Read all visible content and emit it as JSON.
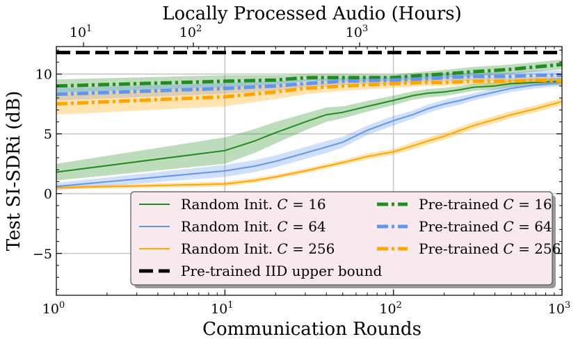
{
  "chart_data": {
    "type": "line",
    "xscale": "log",
    "xlim": [
      1,
      1000
    ],
    "ylim": [
      -8.5,
      12.3
    ],
    "xlabel": "Communication Rounds",
    "ylabel": "Test SI-SDRi (dB)",
    "top_xlabel": "Locally Processed Audio (Hours)",
    "x_ticks": [
      {
        "value": 1,
        "base": "10",
        "exp": "0"
      },
      {
        "value": 10,
        "base": "10",
        "exp": "1"
      },
      {
        "value": 100,
        "base": "10",
        "exp": "2"
      },
      {
        "value": 1000,
        "base": "10",
        "exp": "3"
      }
    ],
    "top_ticks": [
      {
        "value": 1.45,
        "base": "10",
        "exp": "1"
      },
      {
        "value": 6.5,
        "base": "10",
        "exp": "2"
      },
      {
        "value": 63,
        "base": "10",
        "exp": "3"
      }
    ],
    "y_ticks": [
      {
        "value": 10,
        "label": "10"
      },
      {
        "value": 5,
        "label": "5"
      },
      {
        "value": 0,
        "label": "0"
      },
      {
        "value": -5,
        "label": "−5"
      }
    ],
    "upper_bound": {
      "name": "Pre-trained IID upper bound",
      "value": 11.8,
      "color": "#000000"
    },
    "legend": {
      "placement": "lower-right",
      "entries": [
        {
          "series": 0,
          "label": "Random Init. ",
          "c": "C",
          "eq": " = 16"
        },
        {
          "series": 3,
          "label": "Pre-trained ",
          "c": "C",
          "eq": " = 16"
        },
        {
          "series": 1,
          "label": "Random Init. ",
          "c": "C",
          "eq": " = 64"
        },
        {
          "series": 4,
          "label": "Pre-trained ",
          "c": "C",
          "eq": " = 64"
        },
        {
          "series": 2,
          "label": "Random Init. ",
          "c": "C",
          "eq": " = 256"
        },
        {
          "series": 5,
          "label": "Pre-trained ",
          "c": "C",
          "eq": " = 256"
        },
        {
          "series": "upper",
          "label": "Pre-trained IID upper bound",
          "c": "",
          "eq": ""
        }
      ]
    },
    "series": [
      {
        "name": "Random Init. C = 16",
        "style": "solid",
        "color": "#228B22",
        "x": [
          1,
          10,
          15,
          20,
          30,
          40,
          50,
          70,
          100,
          130,
          160,
          200,
          250,
          300,
          400,
          500,
          700,
          1000
        ],
        "values": [
          1.8,
          3.6,
          4.4,
          5.1,
          6.0,
          6.6,
          6.8,
          7.3,
          7.8,
          8.2,
          8.4,
          8.5,
          8.7,
          8.9,
          9.0,
          9.2,
          9.3,
          9.4
        ],
        "band": [
          0.7,
          1.1,
          1.0,
          0.9,
          0.7,
          0.6,
          0.5,
          0.45,
          0.4,
          0.35,
          0.35,
          0.35,
          0.3,
          0.3,
          0.3,
          0.3,
          0.3,
          0.3
        ]
      },
      {
        "name": "Random Init. C = 64",
        "style": "solid",
        "color": "#6495ED",
        "x": [
          1,
          10,
          15,
          20,
          30,
          40,
          50,
          70,
          100,
          130,
          160,
          200,
          250,
          300,
          400,
          500,
          700,
          1000
        ],
        "values": [
          0.6,
          1.9,
          2.3,
          2.7,
          3.4,
          3.9,
          4.3,
          5.3,
          6.1,
          6.6,
          7.1,
          7.5,
          7.8,
          8.1,
          8.5,
          8.8,
          9.1,
          9.3
        ],
        "band": [
          0.3,
          0.5,
          0.5,
          0.5,
          0.5,
          0.5,
          0.45,
          0.4,
          0.4,
          0.35,
          0.35,
          0.35,
          0.35,
          0.3,
          0.3,
          0.3,
          0.3,
          0.3
        ]
      },
      {
        "name": "Random Init. C = 256",
        "style": "solid",
        "color": "#FFA500",
        "x": [
          1,
          10,
          15,
          20,
          30,
          40,
          50,
          70,
          100,
          130,
          160,
          200,
          250,
          300,
          400,
          500,
          700,
          1000
        ],
        "values": [
          0.5,
          0.8,
          1.1,
          1.4,
          1.9,
          2.3,
          2.6,
          3.1,
          3.5,
          4.0,
          4.4,
          4.8,
          5.3,
          5.7,
          6.2,
          6.6,
          7.1,
          7.7
        ],
        "band": [
          0.15,
          0.2,
          0.2,
          0.2,
          0.2,
          0.2,
          0.2,
          0.25,
          0.25,
          0.3,
          0.3,
          0.3,
          0.3,
          0.3,
          0.3,
          0.3,
          0.3,
          0.3
        ]
      },
      {
        "name": "Pre-trained C = 16",
        "style": "dashdot",
        "color": "#228B22",
        "x": [
          1,
          10,
          20,
          30,
          50,
          100,
          150,
          200,
          300,
          400,
          500,
          700,
          1000
        ],
        "values": [
          9.0,
          9.4,
          9.5,
          9.7,
          9.7,
          9.7,
          9.9,
          10.0,
          10.2,
          10.3,
          10.4,
          10.6,
          10.8
        ],
        "band": [
          0.55,
          0.5,
          0.4,
          0.3,
          0.3,
          0.25,
          0.3,
          0.35,
          0.4,
          0.4,
          0.4,
          0.4,
          0.4
        ]
      },
      {
        "name": "Pre-trained C = 64",
        "style": "dashdot",
        "color": "#6495ED",
        "x": [
          1,
          10,
          20,
          30,
          50,
          100,
          150,
          200,
          300,
          400,
          500,
          700,
          1000
        ],
        "values": [
          8.3,
          8.8,
          9.0,
          9.2,
          9.4,
          9.5,
          9.6,
          9.7,
          9.8,
          9.8,
          9.8,
          9.9,
          9.9
        ],
        "band": [
          0.5,
          0.45,
          0.4,
          0.35,
          0.3,
          0.3,
          0.3,
          0.3,
          0.35,
          0.35,
          0.35,
          0.4,
          0.4
        ]
      },
      {
        "name": "Pre-trained C = 256",
        "style": "dashdot",
        "color": "#FFA500",
        "x": [
          1,
          10,
          20,
          30,
          50,
          100,
          150,
          200,
          300,
          400,
          500,
          700,
          1000
        ],
        "values": [
          7.5,
          8.1,
          8.5,
          8.8,
          9.0,
          9.2,
          9.3,
          9.3,
          9.4,
          9.4,
          9.4,
          9.5,
          9.4
        ],
        "band": [
          0.9,
          0.8,
          0.6,
          0.5,
          0.4,
          0.35,
          0.3,
          0.3,
          0.3,
          0.3,
          0.3,
          0.3,
          0.3
        ]
      }
    ]
  }
}
